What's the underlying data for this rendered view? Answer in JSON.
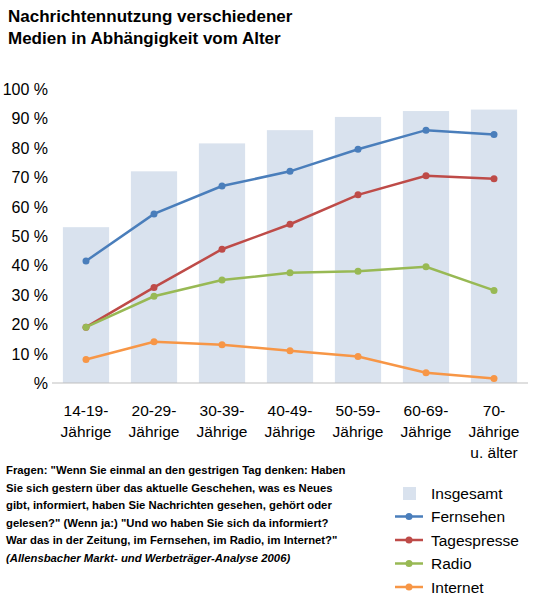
{
  "chart_data": {
    "type": "bar",
    "title": "Nachrichtennutzung verschiedener Medien in Abhängigkeit vom Alter",
    "note": "Fragen: \"Wenn Sie einmal an den gestrigen Tag denken: Haben Sie sich gestern über das aktuelle Geschehen, was es Neues gibt, informiert, haben Sie Nachrichten gesehen, gehört oder gelesen?\" (Wenn ja:) \"Und wo haben Sie sich da informiert? War das in der Zeitung, im Fernsehen, im Radio, im Internet?\"",
    "source": "(Allensbacher Markt- und Werbeträger-Analyse 2006)",
    "categories": [
      "14-19-Jährige",
      "20-29-Jährige",
      "30-39-Jährige",
      "40-49-Jährige",
      "50-59-Jährige",
      "60-69-Jährige",
      "70-Jährige u. älter"
    ],
    "series": [
      {
        "name": "Insgesamt",
        "type": "bar",
        "color": "#d9e2ee",
        "values": [
          53,
          72,
          81.5,
          86,
          90.5,
          92.5,
          93
        ]
      },
      {
        "name": "Fernsehen",
        "type": "line",
        "marker": "circle",
        "color": "#4a7ebb",
        "values": [
          41.5,
          57.5,
          67,
          72,
          79.5,
          86,
          84.5
        ]
      },
      {
        "name": "Tagespresse",
        "type": "line",
        "marker": "circle",
        "color": "#be4b48",
        "values": [
          19,
          32.5,
          45.5,
          54,
          64,
          70.5,
          69.5
        ]
      },
      {
        "name": "Radio",
        "type": "line",
        "marker": "circle",
        "color": "#98b954",
        "values": [
          19,
          29.5,
          35,
          37.5,
          38,
          39.5,
          31.5
        ]
      },
      {
        "name": "Internet",
        "type": "line",
        "marker": "circle",
        "color": "#f79646",
        "values": [
          8,
          14,
          13,
          11,
          9,
          3.5,
          1.5
        ]
      }
    ],
    "ylim": [
      0,
      100
    ],
    "yticks": [
      {
        "value": 0,
        "label": "%"
      },
      {
        "value": 10,
        "label": "10 %"
      },
      {
        "value": 20,
        "label": "20 %"
      },
      {
        "value": 30,
        "label": "30 %"
      },
      {
        "value": 40,
        "label": "40 %"
      },
      {
        "value": 50,
        "label": "50 %"
      },
      {
        "value": 60,
        "label": "60 %"
      },
      {
        "value": 70,
        "label": "70 %"
      },
      {
        "value": 80,
        "label": "80 %"
      },
      {
        "value": 90,
        "label": "90 %"
      },
      {
        "value": 100,
        "label": "100 %"
      }
    ],
    "grid": false,
    "legend": "lower right"
  }
}
